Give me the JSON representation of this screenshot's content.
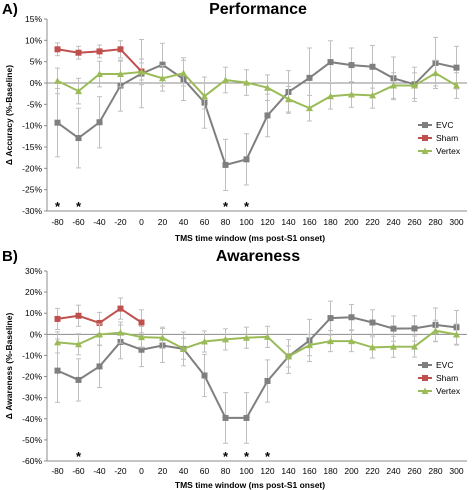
{
  "colors": {
    "evc": "#7f7f7f",
    "sham": "#c0504d",
    "vertex": "#9bbb59",
    "errorbar": "#bfbfbf",
    "axis": "#8c8c8c"
  },
  "chart_data": [
    {
      "panel": "A)",
      "type": "line",
      "title": "Performance",
      "xlabel": "TMS time window (ms post-S1 onset)",
      "ylabel": "Δ Accuracy (%-Baseline)",
      "x": [
        -80,
        -60,
        -40,
        -20,
        0,
        20,
        40,
        60,
        80,
        100,
        120,
        140,
        160,
        180,
        200,
        220,
        240,
        260,
        280,
        300
      ],
      "x_ticks": [
        "-80",
        "-60",
        "-40",
        "-20",
        "0",
        "20",
        "40",
        "60",
        "80",
        "100",
        "120",
        "140",
        "160",
        "180",
        "200",
        "220",
        "240",
        "260",
        "280",
        "300"
      ],
      "ylim": [
        -30,
        15
      ],
      "y_ticks": [
        15,
        10,
        5,
        0,
        -5,
        -10,
        -15,
        -20,
        -25,
        -30
      ],
      "y_tick_labels": [
        "15%",
        "10%",
        "5%",
        "0%",
        "-5%",
        "-10%",
        "-15%",
        "-20%",
        "-25%",
        "-30%"
      ],
      "legend": "right",
      "series": [
        {
          "name": "EVC",
          "key": "evc",
          "marker": "square",
          "values": [
            -9.3,
            -12.9,
            -9.2,
            -0.6,
            2.2,
            4.3,
            0.9,
            -4.6,
            -19.2,
            -17.9,
            -7.6,
            -2.1,
            1.2,
            4.9,
            4.2,
            3.8,
            1.1,
            -0.3,
            4.7,
            3.6
          ],
          "err": [
            8,
            7,
            6,
            6,
            8,
            5,
            5,
            6,
            6,
            6,
            5,
            5,
            7,
            5,
            4,
            5,
            5,
            4,
            6,
            5
          ]
        },
        {
          "name": "Sham",
          "key": "sham",
          "marker": "square",
          "x": [
            -80,
            -60,
            -40,
            -20,
            0
          ],
          "values": [
            7.9,
            7.1,
            7.4,
            7.9,
            2.7
          ],
          "err": [
            1.5,
            1.5,
            1.5,
            2,
            2
          ]
        },
        {
          "name": "Vertex",
          "key": "vertex",
          "marker": "triangle",
          "values": [
            0.5,
            -1.9,
            2.1,
            2.1,
            2.6,
            1.1,
            2.3,
            -3.1,
            0.7,
            0.1,
            -1.1,
            -3.8,
            -5.9,
            -3.1,
            -2.7,
            -2.9,
            -0.6,
            -0.6,
            2.3,
            -0.6
          ],
          "err": [
            3,
            3,
            3,
            3,
            3,
            3,
            3,
            3,
            3,
            3,
            3,
            3,
            3,
            3,
            3,
            3,
            3,
            3,
            3,
            3
          ]
        }
      ],
      "stars": [
        -80,
        -60,
        80,
        100
      ]
    },
    {
      "panel": "B)",
      "type": "line",
      "title": "Awareness",
      "xlabel": "TMS time window (ms post-S1 onset)",
      "ylabel": "Δ Awareness (%-Baseline)",
      "x": [
        -80,
        -60,
        -40,
        -20,
        0,
        20,
        40,
        60,
        80,
        100,
        120,
        140,
        160,
        180,
        200,
        220,
        240,
        260,
        280,
        300
      ],
      "x_ticks": [
        "-80",
        "-60",
        "-40",
        "-20",
        "0",
        "20",
        "40",
        "60",
        "80",
        "100",
        "120",
        "140",
        "160",
        "180",
        "200",
        "220",
        "240",
        "260",
        "280",
        "300"
      ],
      "ylim": [
        -60,
        30
      ],
      "y_ticks": [
        30,
        20,
        10,
        0,
        -10,
        -20,
        -30,
        -40,
        -50,
        -60
      ],
      "y_tick_labels": [
        "30%",
        "20%",
        "10%",
        "0%",
        "-10%",
        "-20%",
        "-30%",
        "-40%",
        "-50%",
        "-60%"
      ],
      "legend": "right",
      "series": [
        {
          "name": "EVC",
          "key": "evc",
          "marker": "square",
          "values": [
            -17.2,
            -21.6,
            -15.2,
            -3.6,
            -7.3,
            -5.3,
            -6.9,
            -19.5,
            -39.6,
            -39.6,
            -22.1,
            -10.5,
            -2.9,
            7.7,
            8.1,
            5.6,
            2.7,
            2.8,
            4.5,
            3.3
          ],
          "err": [
            15,
            10,
            10,
            8,
            8,
            8,
            8,
            10,
            12,
            12,
            10,
            8,
            10,
            8,
            6,
            6,
            6,
            6,
            8,
            8
          ]
        },
        {
          "name": "Sham",
          "key": "sham",
          "marker": "square",
          "x": [
            -80,
            -60,
            -40,
            -20,
            0
          ],
          "values": [
            7.3,
            8.8,
            5.4,
            12.2,
            5.6
          ],
          "err": [
            5,
            5,
            5,
            5,
            6
          ]
        },
        {
          "name": "Vertex",
          "key": "vertex",
          "marker": "triangle",
          "values": [
            -3.8,
            -4.7,
            -0.1,
            0.8,
            -1.3,
            -1.6,
            -6.8,
            -3.4,
            -2.4,
            -1.6,
            -1.2,
            -10.5,
            -5.1,
            -3.2,
            -3.2,
            -6.2,
            -5.9,
            -5.8,
            1.7,
            -0.1
          ],
          "err": [
            5,
            5,
            5,
            5,
            5,
            5,
            5,
            5,
            5,
            5,
            5,
            5,
            5,
            5,
            5,
            5,
            5,
            5,
            5,
            5
          ]
        }
      ],
      "stars": [
        -60,
        80,
        100,
        120
      ]
    }
  ]
}
